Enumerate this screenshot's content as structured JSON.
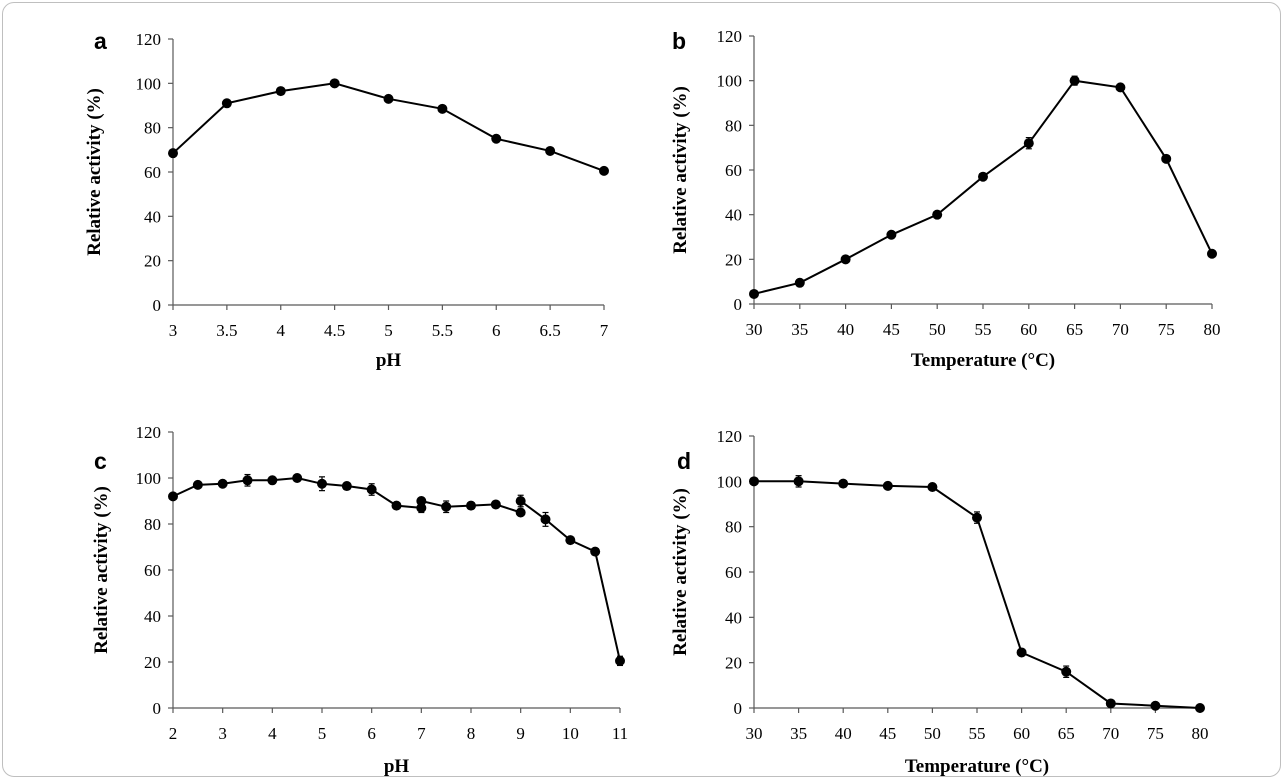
{
  "chart_data": [
    {
      "panel": "a",
      "type": "line",
      "xlabel": "pH",
      "ylabel": "Relative activity (%)",
      "xlim": [
        3,
        7
      ],
      "ylim": [
        0,
        120
      ],
      "xticks": [
        "3",
        "3.5",
        "4",
        "4.5",
        "5",
        "5.5",
        "6",
        "6.5",
        "7"
      ],
      "yticks": [
        "0",
        "20",
        "40",
        "60",
        "80",
        "100",
        "120"
      ],
      "grid": false,
      "series": [
        {
          "x": [
            3,
            3.5,
            4,
            4.5,
            5,
            5.5,
            6,
            6.5,
            7
          ],
          "y": [
            68.5,
            91,
            96.5,
            100,
            93,
            88.5,
            75,
            69.5,
            60.5
          ]
        }
      ]
    },
    {
      "panel": "b",
      "type": "line",
      "xlabel": "Temperature (°C)",
      "ylabel": "Relative activity (%)",
      "xlim": [
        30,
        80
      ],
      "ylim": [
        0,
        120
      ],
      "xticks": [
        "30",
        "35",
        "40",
        "45",
        "50",
        "55",
        "60",
        "65",
        "70",
        "75",
        "80"
      ],
      "yticks": [
        "0",
        "20",
        "40",
        "60",
        "80",
        "100",
        "120"
      ],
      "grid": false,
      "series": [
        {
          "x": [
            30,
            35,
            40,
            45,
            50,
            55,
            60,
            65,
            70,
            75,
            80
          ],
          "y": [
            4.5,
            9.5,
            20,
            31,
            40,
            57,
            72,
            100,
            97,
            65,
            22.5
          ],
          "err": [
            0,
            0,
            0,
            0,
            0,
            0,
            2.5,
            2,
            0,
            0,
            0
          ]
        }
      ]
    },
    {
      "panel": "c",
      "type": "line",
      "xlabel": "pH",
      "ylabel": "Relative activity (%)",
      "xlim": [
        2,
        11
      ],
      "ylim": [
        0,
        120
      ],
      "xticks": [
        "2",
        "3",
        "4",
        "5",
        "6",
        "7",
        "8",
        "9",
        "10",
        "11"
      ],
      "yticks": [
        "0",
        "20",
        "40",
        "60",
        "80",
        "100",
        "120"
      ],
      "grid": false,
      "series": [
        {
          "x": [
            2,
            2.5,
            3,
            3.5,
            4,
            4.5,
            5,
            5.5,
            6,
            6.5,
            7
          ],
          "y": [
            92,
            97,
            97.5,
            99,
            99,
            100,
            97.5,
            96.5,
            95,
            88,
            87
          ],
          "err": [
            0,
            0,
            0,
            2.5,
            0,
            0,
            3,
            0,
            2.5,
            0,
            2
          ]
        },
        {
          "x": [
            7,
            7.5,
            8,
            8.5,
            9
          ],
          "y": [
            90,
            87.5,
            88,
            88.5,
            85
          ],
          "err": [
            0,
            2.5,
            1.5,
            0,
            0
          ]
        },
        {
          "x": [
            9,
            9.5,
            10,
            10.5,
            11
          ],
          "y": [
            90,
            82,
            73,
            68,
            20.5
          ],
          "err": [
            2.5,
            3,
            0,
            0,
            2
          ]
        }
      ]
    },
    {
      "panel": "d",
      "type": "line",
      "xlabel": "Temperature (°C)",
      "ylabel": "Relative activity (%)",
      "xlim": [
        30,
        80
      ],
      "ylim": [
        0,
        120
      ],
      "xticks": [
        "30",
        "35",
        "40",
        "45",
        "50",
        "55",
        "60",
        "65",
        "70",
        "75",
        "80"
      ],
      "yticks": [
        "0",
        "20",
        "40",
        "60",
        "80",
        "100",
        "120"
      ],
      "grid": false,
      "series": [
        {
          "x": [
            30,
            35,
            40,
            45,
            50,
            55,
            60,
            65,
            70,
            75,
            80
          ],
          "y": [
            100,
            100,
            99,
            98,
            97.5,
            84,
            24.5,
            16,
            2,
            1,
            0
          ],
          "err": [
            0,
            2.5,
            0,
            0,
            0,
            2.5,
            0,
            2.5,
            0,
            0,
            0
          ]
        }
      ]
    }
  ]
}
